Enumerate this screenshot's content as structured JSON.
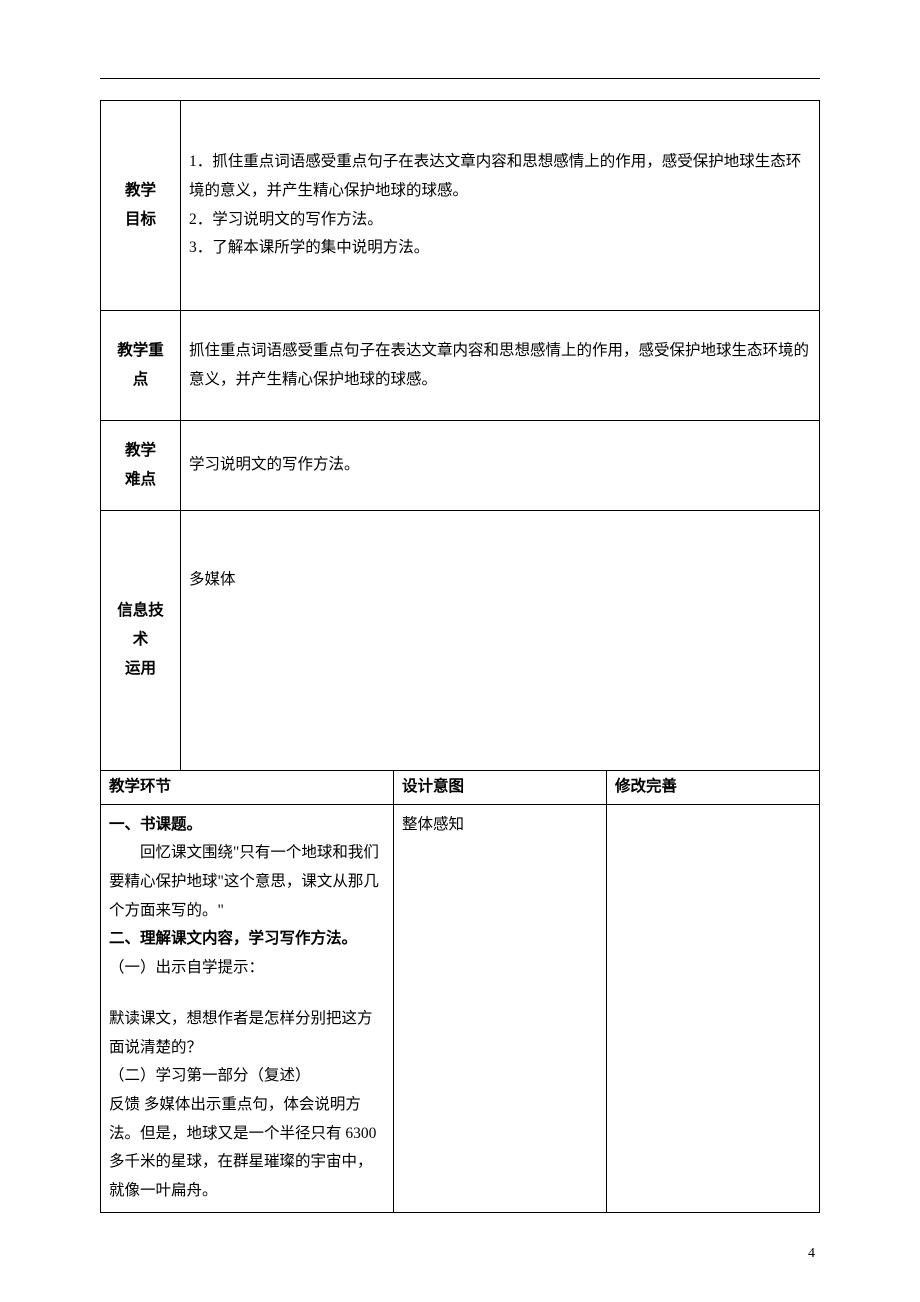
{
  "labels": {
    "goal_l1": "教学",
    "goal_l2": "目标",
    "key_l1": "教学重",
    "key_l2": "点",
    "diff_l1": "教学",
    "diff_l2": "难点",
    "tech_l1": "信息技",
    "tech_l2": "术",
    "tech_l3": "运用",
    "steps_header": "教学环节",
    "intent_header": "设计意图",
    "modify_header": "修改完善"
  },
  "goal": {
    "line1": "1．抓住重点词语感受重点句子在表达文章内容和思想感情上的作用，感受保护地球生态环境的意义，并产生精心保护地球的球感。",
    "line2": "2．学习说明文的写作方法。",
    "line3": "3．了解本课所学的集中说明方法。"
  },
  "key": "抓住重点词语感受重点句子在表达文章内容和思想感情上的作用，感受保护地球生态环境的意义，并产生精心保护地球的球感。",
  "diff": "学习说明文的写作方法。",
  "tech": "多媒体",
  "steps": {
    "s1_title": "一、书课题。",
    "s1_p1": "回忆课文围绕\"只有一个地球和我们要精心保护地球\"这个意思，课文从那几个方面来写的。\"",
    "s2_title": "二、理解课文内容，学习写作方法。",
    "s2_p1": "（一）出示自学提示：",
    "s2_p2": "默读课文，想想作者是怎样分别把这方面说清楚的？",
    "s2_p3": "（二）学习第一部分（复述）",
    "s2_p4": "反馈 多媒体出示重点句，体会说明方法。但是，地球又是一个半径只有 6300 多千米的星球，在群星璀璨的宇宙中，就像一叶扁舟。"
  },
  "intent": "整体感知",
  "page_number": "4"
}
